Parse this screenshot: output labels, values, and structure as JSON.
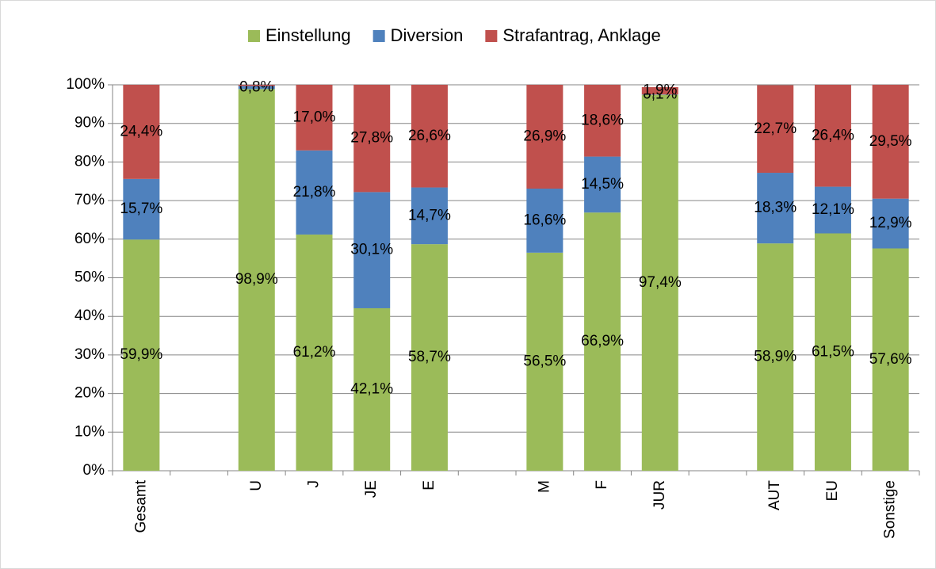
{
  "chart_data": {
    "type": "stacked_bar",
    "categories": [
      "Gesamt",
      null,
      "U",
      "J",
      "JE",
      "E",
      null,
      "M",
      "F",
      "JUR",
      null,
      "AUT",
      "EU",
      "Sonstige"
    ],
    "series": [
      {
        "name": "Einstellung",
        "color": "#9bbb59",
        "values": [
          59.9,
          null,
          98.9,
          61.2,
          42.1,
          58.7,
          null,
          56.5,
          66.9,
          97.4,
          null,
          58.9,
          61.5,
          57.6
        ],
        "value_labels": [
          "59,9%",
          null,
          "98,9%",
          "61,2%",
          "42,1%",
          "58,7%",
          null,
          "56,5%",
          "66,9%",
          "97,4%",
          null,
          "58,9%",
          "61,5%",
          "57,6%"
        ]
      },
      {
        "name": "Diversion",
        "color": "#4f81bd",
        "values": [
          15.7,
          null,
          0.8,
          21.8,
          30.1,
          14.7,
          null,
          16.6,
          14.5,
          0.1,
          null,
          18.3,
          12.1,
          12.9
        ],
        "value_labels": [
          "15,7%",
          null,
          "0,8%",
          "21,8%",
          "30,1%",
          "14,7%",
          null,
          "16,6%",
          "14,5%",
          "0,1%",
          null,
          "18,3%",
          "12,1%",
          "12,9%"
        ]
      },
      {
        "name": "Strafantrag, Anklage",
        "color": "#c0504d",
        "values": [
          24.4,
          null,
          0.3,
          17.0,
          27.8,
          26.6,
          null,
          26.9,
          18.6,
          1.9,
          null,
          22.7,
          26.4,
          29.5
        ],
        "value_labels": [
          "24,4%",
          null,
          null,
          "17,0%",
          "27,8%",
          "26,6%",
          null,
          "26,9%",
          "18,6%",
          "1,9%",
          null,
          "22,7%",
          "26,4%",
          "29,5%"
        ]
      }
    ],
    "ylim": [
      0,
      100
    ],
    "yticks": [
      {
        "value": 0,
        "label": "0%"
      },
      {
        "value": 10,
        "label": "10%"
      },
      {
        "value": 20,
        "label": "20%"
      },
      {
        "value": 30,
        "label": "30%"
      },
      {
        "value": 40,
        "label": "40%"
      },
      {
        "value": 50,
        "label": "50%"
      },
      {
        "value": 60,
        "label": "60%"
      },
      {
        "value": 70,
        "label": "70%"
      },
      {
        "value": 80,
        "label": "80%"
      },
      {
        "value": 90,
        "label": "90%"
      },
      {
        "value": 100,
        "label": "100%"
      }
    ],
    "grid": true,
    "legend": "top"
  }
}
